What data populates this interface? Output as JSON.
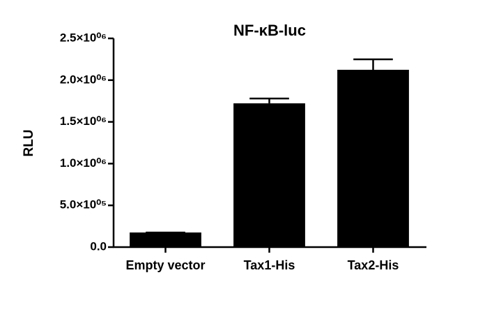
{
  "chart_data": {
    "type": "bar",
    "title": "NF-κB-luc",
    "y_label": "RLU",
    "categories": [
      "Empty vector",
      "Tax1-His",
      "Tax2-His"
    ],
    "values": [
      175000,
      1722000,
      2124000
    ],
    "errors": [
      0,
      58000,
      125000
    ],
    "color": "#000000",
    "ylim": [
      0,
      2500000
    ],
    "yticks": [
      {
        "value": 0,
        "label": "0.0"
      },
      {
        "value": 500000,
        "label": "5.0×10⁰⁵"
      },
      {
        "value": 1000000,
        "label": "1.0×10⁰⁶"
      },
      {
        "value": 1500000,
        "label": "1.5×10⁰⁶"
      },
      {
        "value": 2000000,
        "label": "2.0×10⁰⁶"
      },
      {
        "value": 2500000,
        "label": "2.5×10⁰⁶"
      }
    ],
    "grid": false
  }
}
